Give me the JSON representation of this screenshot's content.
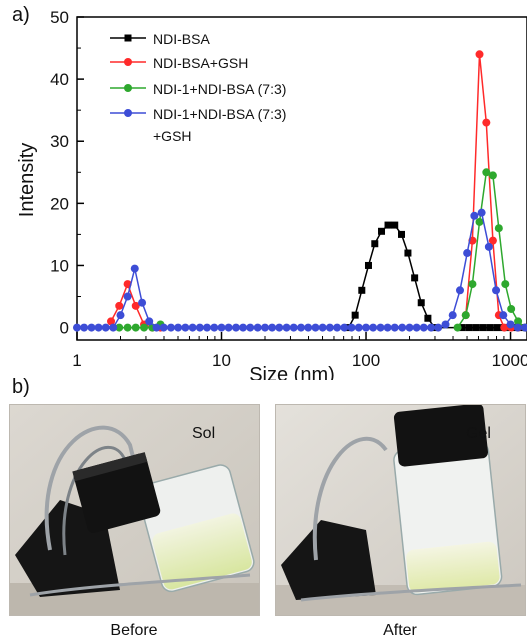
{
  "panel_a_label": "a)",
  "panel_b_label": "b)",
  "chart_data": {
    "type": "line",
    "title": "",
    "xlabel": "Size (nm)",
    "ylabel": "Intensity",
    "x_scale": "log",
    "xlim": [
      1,
      1300
    ],
    "ylim": [
      -2,
      50
    ],
    "x_ticks": [
      1,
      10,
      100,
      1000
    ],
    "x_tick_labels": [
      "1",
      "10",
      "100",
      "1000"
    ],
    "y_ticks": [
      0,
      10,
      20,
      30,
      40,
      50
    ],
    "y_tick_labels": [
      "0",
      "10",
      "20",
      "30",
      "40",
      "50"
    ],
    "legend_position": "top-left",
    "series": [
      {
        "name": "NDI-BSA",
        "color": "#000000",
        "marker": "square",
        "points": [
          [
            75.7,
            0
          ],
          [
            84.1,
            2
          ],
          [
            93.5,
            6
          ],
          [
            104,
            10
          ],
          [
            115,
            13.5
          ],
          [
            128,
            15.5
          ],
          [
            142,
            16.5
          ],
          [
            158,
            16.5
          ],
          [
            176,
            15
          ],
          [
            195,
            12
          ],
          [
            217,
            8
          ],
          [
            241,
            4
          ],
          [
            268,
            1.5
          ],
          [
            298,
            0
          ],
          [
            464,
            0
          ],
          [
            519,
            0
          ],
          [
            580,
            0
          ],
          [
            648,
            0
          ],
          [
            724,
            0
          ],
          [
            809,
            0
          ],
          [
            904,
            0
          ],
          [
            1010,
            0
          ],
          [
            1128,
            0
          ],
          [
            1260,
            0
          ]
        ]
      },
      {
        "name": "NDI-BSA+GSH",
        "color": "#ff2a2a",
        "marker": "circle",
        "points": [
          [
            1.72,
            1
          ],
          [
            1.96,
            3.5
          ],
          [
            2.24,
            7
          ],
          [
            2.55,
            3.5
          ],
          [
            2.91,
            0.5
          ],
          [
            3.32,
            0
          ],
          [
            3.78,
            0
          ],
          [
            490,
            2
          ],
          [
            545,
            14
          ],
          [
            610,
            44
          ],
          [
            680,
            33
          ],
          [
            755,
            14
          ],
          [
            830,
            2
          ],
          [
            905,
            0
          ],
          [
            1010,
            0
          ],
          [
            1128,
            0
          ],
          [
            1260,
            0
          ]
        ]
      },
      {
        "name": "NDI-1+NDI-BSA (7:3)",
        "color": "#2ea82e",
        "marker": "circle",
        "points": [
          [
            1.96,
            0
          ],
          [
            2.24,
            0
          ],
          [
            2.55,
            0
          ],
          [
            2.91,
            0
          ],
          [
            3.32,
            0
          ],
          [
            3.78,
            0.5
          ],
          [
            430,
            0
          ],
          [
            490,
            2
          ],
          [
            545,
            7
          ],
          [
            610,
            17
          ],
          [
            680,
            25
          ],
          [
            755,
            24.5
          ],
          [
            830,
            16
          ],
          [
            920,
            7
          ],
          [
            1010,
            3
          ],
          [
            1128,
            1
          ],
          [
            1260,
            0
          ]
        ]
      },
      {
        "name": "NDI-1+NDI-BSA (7:3)\n+GSH",
        "color": "#3d4dd6",
        "marker": "circle",
        "points": [
          [
            1,
            0
          ],
          [
            1.12,
            0
          ],
          [
            1.26,
            0
          ],
          [
            1.41,
            0
          ],
          [
            1.58,
            0
          ],
          [
            1.78,
            0
          ],
          [
            2.0,
            2
          ],
          [
            2.24,
            5
          ],
          [
            2.51,
            9.5
          ],
          [
            2.82,
            4
          ],
          [
            3.16,
            1
          ],
          [
            3.55,
            0
          ],
          [
            3.98,
            0
          ],
          [
            4.47,
            0
          ],
          [
            5.01,
            0
          ],
          [
            5.62,
            0
          ],
          [
            6.31,
            0
          ],
          [
            7.08,
            0
          ],
          [
            7.94,
            0
          ],
          [
            8.91,
            0
          ],
          [
            10,
            0
          ],
          [
            11.2,
            0
          ],
          [
            12.6,
            0
          ],
          [
            14.1,
            0
          ],
          [
            15.8,
            0
          ],
          [
            17.8,
            0
          ],
          [
            20,
            0
          ],
          [
            22.4,
            0
          ],
          [
            25.1,
            0
          ],
          [
            28.2,
            0
          ],
          [
            31.6,
            0
          ],
          [
            35.5,
            0
          ],
          [
            39.8,
            0
          ],
          [
            44.7,
            0
          ],
          [
            50.1,
            0
          ],
          [
            56.2,
            0
          ],
          [
            63.1,
            0
          ],
          [
            70.8,
            0
          ],
          [
            79.4,
            0
          ],
          [
            89.1,
            0
          ],
          [
            100,
            0
          ],
          [
            112,
            0
          ],
          [
            126,
            0
          ],
          [
            141,
            0
          ],
          [
            158,
            0
          ],
          [
            178,
            0
          ],
          [
            200,
            0
          ],
          [
            224,
            0
          ],
          [
            251,
            0
          ],
          [
            282,
            0
          ],
          [
            316,
            0
          ],
          [
            355,
            0.5
          ],
          [
            398,
            2
          ],
          [
            447,
            6
          ],
          [
            501,
            12
          ],
          [
            562,
            18
          ],
          [
            631,
            18.5
          ],
          [
            708,
            13
          ],
          [
            794,
            6
          ],
          [
            891,
            2
          ],
          [
            1000,
            0.5
          ],
          [
            1122,
            0
          ],
          [
            1260,
            0
          ]
        ]
      }
    ]
  },
  "photos": [
    {
      "tag": "Sol",
      "caption": "Before"
    },
    {
      "tag": "Gel",
      "caption": "After"
    }
  ]
}
